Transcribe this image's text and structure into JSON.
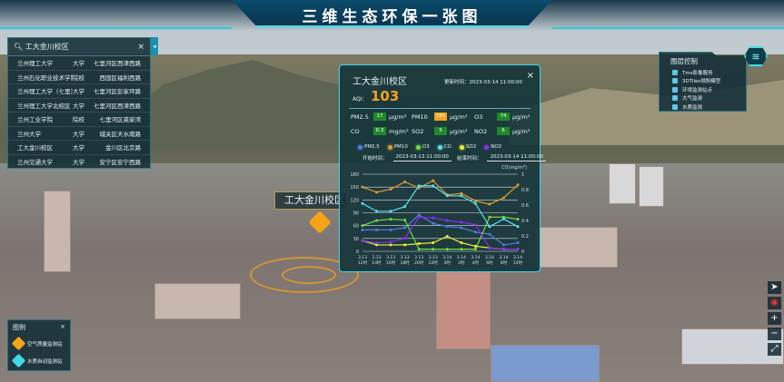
{
  "header": {
    "title": "三维生态环保一张图"
  },
  "search": {
    "placeholder": "工大金川校区",
    "close": "×",
    "toggle": "◂",
    "results": [
      {
        "name": "兰州理工大学",
        "type": "大学",
        "district": "七里河区西津西路"
      },
      {
        "name": "兰州石化职业技术学院",
        "type": "院校",
        "district": "西固区福利西路"
      },
      {
        "name": "兰州理工大学（七里河校区）",
        "type": "大学",
        "district": "七里河区彭家坪路"
      },
      {
        "name": "兰州理工大学北校区",
        "type": "大学",
        "district": "七里河区西津西路"
      },
      {
        "name": "兰州工业学院",
        "type": "院校",
        "district": "七里河区龚家湾"
      },
      {
        "name": "兰州大学",
        "type": "大学",
        "district": "城关区天水南路"
      },
      {
        "name": "工大金川校区",
        "type": "大学",
        "district": "金川区北京路"
      },
      {
        "name": "兰州交通大学",
        "type": "大学",
        "district": "安宁区安宁西路"
      }
    ]
  },
  "popup": {
    "title": "工大金川校区",
    "update_label": "更新时间：",
    "update_time": "2023-03-14 11:00:00",
    "close": "×",
    "aqi_label": "AQI：",
    "aqi": "103",
    "pollutants": [
      {
        "name": "PM2.5",
        "value": "17",
        "unit": "μg/m³",
        "color": "#1f8a2a"
      },
      {
        "name": "PM10",
        "value": "155",
        "unit": "μg/m³",
        "color": "#f5a31a"
      },
      {
        "name": "O3",
        "value": "74",
        "unit": "μg/m³",
        "color": "#1f8a2a"
      },
      {
        "name": "CO",
        "value": "0.3",
        "unit": "mg/m³",
        "color": "#1f8a2a"
      },
      {
        "name": "SO2",
        "value": "5",
        "unit": "μg/m³",
        "color": "#1f8a2a"
      },
      {
        "name": "NO2",
        "value": "6",
        "unit": "μg/m³",
        "color": "#1f8a2a"
      }
    ],
    "start_label": "开始时间：",
    "start_time": "2023-03-13 11:00:00",
    "end_label": "结束时间：",
    "end_time": "2023-03-14 11:00:00"
  },
  "chart_data": {
    "type": "line",
    "grid": true,
    "legend": "top",
    "categories": [
      "3.13 12时",
      "3.13 14时",
      "3.13 16时",
      "3.13 18时",
      "3.13 20时",
      "3.13 22时",
      "3.14 0时",
      "3.14 2时",
      "3.14 4时",
      "3.14 6时",
      "3.14 8时",
      "3.14 10时"
    ],
    "ylim_left": [
      0,
      180
    ],
    "yticks_left": [
      0,
      30,
      60,
      90,
      120,
      150,
      180
    ],
    "ylim_right": [
      0,
      1
    ],
    "yticks_right": [
      0,
      0.2,
      0.4,
      0.6,
      0.8,
      1
    ],
    "ylabel_right": "CO(mg/m³)",
    "series": [
      {
        "name": "PM2.5",
        "axis": "left",
        "color": "#4a7fe0",
        "values": [
          50,
          50,
          50,
          55,
          85,
          65,
          58,
          55,
          45,
          40,
          15,
          20
        ]
      },
      {
        "name": "PM10",
        "axis": "left",
        "color": "#e09a30",
        "values": [
          150,
          138,
          145,
          162,
          148,
          165,
          132,
          135,
          118,
          110,
          125,
          155
        ]
      },
      {
        "name": "O3",
        "axis": "left",
        "color": "#6ee03a",
        "values": [
          60,
          72,
          75,
          73,
          5,
          5,
          5,
          5,
          5,
          80,
          80,
          75
        ]
      },
      {
        "name": "CO",
        "axis": "right",
        "color": "#5ae0f0",
        "values": [
          0.62,
          0.52,
          0.52,
          0.58,
          0.85,
          0.85,
          0.72,
          0.72,
          0.62,
          0.32,
          0.42,
          0.32
        ]
      },
      {
        "name": "SO2",
        "axis": "left",
        "color": "#f0f030",
        "values": [
          25,
          15,
          15,
          15,
          18,
          20,
          35,
          20,
          12,
          8,
          5,
          5
        ]
      },
      {
        "name": "NO2",
        "axis": "left",
        "color": "#8a2ef0",
        "values": [
          25,
          20,
          22,
          30,
          80,
          78,
          72,
          68,
          62,
          8,
          5,
          5
        ]
      }
    ]
  },
  "layers": {
    "title": "图层控制",
    "items": [
      {
        "label": "Tms影像服务",
        "checked": true
      },
      {
        "label": "3DTiles倾斜模型",
        "checked": true
      },
      {
        "label": "环境监测站点",
        "checked": true
      },
      {
        "label": "大气监测",
        "checked": true
      },
      {
        "label": "水质监测",
        "checked": true
      }
    ]
  },
  "legend": {
    "title": "图例",
    "close": "×",
    "items": [
      {
        "label": "空气质量监测站",
        "color": "#f5a31a"
      },
      {
        "label": "水质自动监测站",
        "color": "#3fd8e8"
      }
    ]
  },
  "map": {
    "label": "工大金川校区"
  },
  "tools": {
    "navigate": "➤",
    "compass": "◉",
    "zoom_in": "+",
    "zoom_out": "−",
    "fullscreen": "⤢"
  }
}
